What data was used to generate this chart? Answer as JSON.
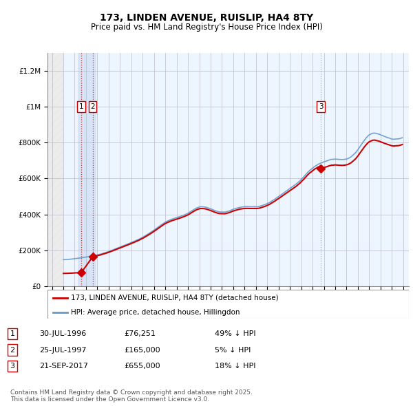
{
  "title": "173, LINDEN AVENUE, RUISLIP, HA4 8TY",
  "subtitle": "Price paid vs. HM Land Registry's House Price Index (HPI)",
  "ylim": [
    0,
    1300000
  ],
  "yticks": [
    0,
    200000,
    400000,
    600000,
    800000,
    1000000,
    1200000
  ],
  "ytick_labels": [
    "£0",
    "£200K",
    "£400K",
    "£600K",
    "£800K",
    "£1M",
    "£1.2M"
  ],
  "sale_dates_num": [
    1996.581,
    1997.581,
    2017.726
  ],
  "sale_prices": [
    76251,
    165000,
    655000
  ],
  "sale_labels": [
    "1",
    "2",
    "3"
  ],
  "vline1_color": "#cc0000",
  "vline2_color": "#cc0000",
  "vline3_color": "#aabbdd",
  "hatch_end": 1995.0,
  "hpi_color": "#6699cc",
  "sale_color": "#cc0000",
  "background_light": "#ddeeff",
  "grid_color": "#bbbbcc",
  "legend_sale_label": "173, LINDEN AVENUE, RUISLIP, HA4 8TY (detached house)",
  "legend_hpi_label": "HPI: Average price, detached house, Hillingdon",
  "table_data": [
    [
      "1",
      "30-JUL-1996",
      "£76,251",
      "49% ↓ HPI"
    ],
    [
      "2",
      "25-JUL-1997",
      "£165,000",
      "5% ↓ HPI"
    ],
    [
      "3",
      "21-SEP-2017",
      "£655,000",
      "18% ↓ HPI"
    ]
  ],
  "footnote": "Contains HM Land Registry data © Crown copyright and database right 2025.\nThis data is licensed under the Open Government Licence v3.0.",
  "xmin": 1993.6,
  "xmax": 2025.5
}
